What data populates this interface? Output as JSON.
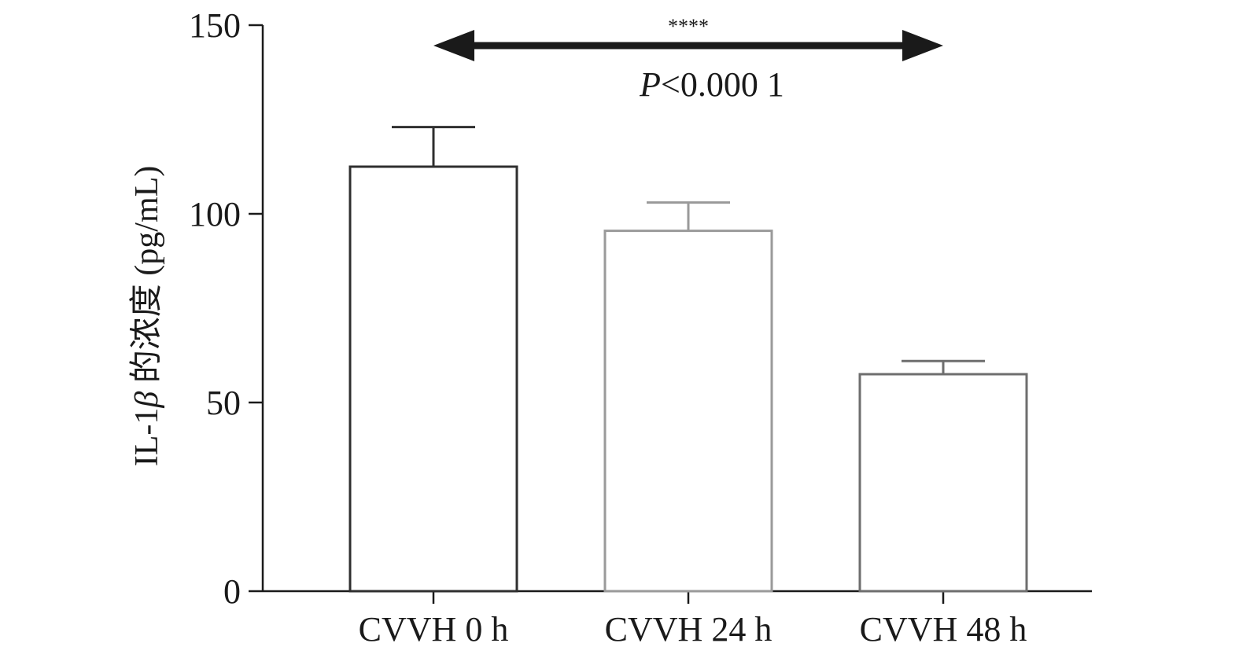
{
  "chart_data": {
    "type": "bar",
    "title": "",
    "xlabel": "",
    "ylabel": "IL-1β 的浓度 (pg/mL)",
    "ylabel_parts": {
      "prefix": "IL-1",
      "greek": "β",
      "suffix": " 的浓度 (pg/mL)"
    },
    "ylim": [
      0,
      150
    ],
    "yticks": [
      0,
      50,
      100,
      150
    ],
    "categories": [
      "CVVH 0 h",
      "CVVH 24 h",
      "CVVH 48 h"
    ],
    "series": [
      {
        "values": [
          112.5,
          95.5,
          57.5
        ],
        "error": [
          10.5,
          7.5,
          3.5
        ]
      }
    ],
    "bar_edge_colors": [
      "#2f2f2f",
      "#9a9a9a",
      "#6e6e6e"
    ],
    "grid": false,
    "annotation": {
      "stars": "****",
      "p_italic": "P",
      "p_rest": "<0.000 1",
      "span_from": 0,
      "span_to": 2
    }
  }
}
